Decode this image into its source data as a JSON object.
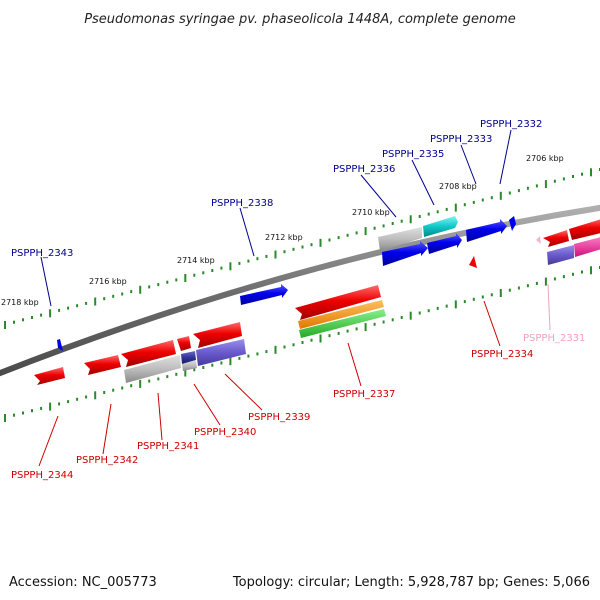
{
  "title": "Pseudomonas syringae pv. phaseolicola 1448A, complete genome",
  "accession": "Accession: NC_005773",
  "summary": "Topology: circular; Length: 5,928,787 bp; Genes: 5,066",
  "scale_labels": [
    "2706 kbp",
    "2708 kbp",
    "2710 kbp",
    "2712 kbp",
    "2714 kbp",
    "2716 kbp",
    "2718 kbp"
  ],
  "colors": {
    "backbone": "#7a7a7a",
    "tick": "#2a8a2a",
    "label_forward": "#00008b",
    "label_reverse": "#cc0000",
    "label_faded": "#f4a0c0"
  },
  "genes_top": [
    {
      "name": "PSPPH_2332",
      "color": "#0000dd"
    },
    {
      "name": "PSPPH_2333",
      "color": "#0000dd"
    },
    {
      "name": "PSPPH_2335",
      "color": "#0000dd"
    },
    {
      "name": "PSPPH_2336",
      "color": "#0000dd"
    },
    {
      "name": "PSPPH_2338",
      "color": "#0000dd"
    },
    {
      "name": "PSPPH_2343",
      "color": "#0000dd"
    }
  ],
  "genes_bottom": [
    {
      "name": "PSPPH_2331",
      "color": "#f080b0"
    },
    {
      "name": "PSPPH_2334",
      "color": "#dd0000"
    },
    {
      "name": "PSPPH_2337",
      "color": "#dd0000"
    },
    {
      "name": "PSPPH_2339",
      "color": "#dd0000"
    },
    {
      "name": "PSPPH_2340",
      "color": "#dd0000"
    },
    {
      "name": "PSPPH_2341",
      "color": "#dd0000"
    },
    {
      "name": "PSPPH_2342",
      "color": "#dd0000"
    },
    {
      "name": "PSPPH_2344",
      "color": "#dd0000"
    }
  ]
}
